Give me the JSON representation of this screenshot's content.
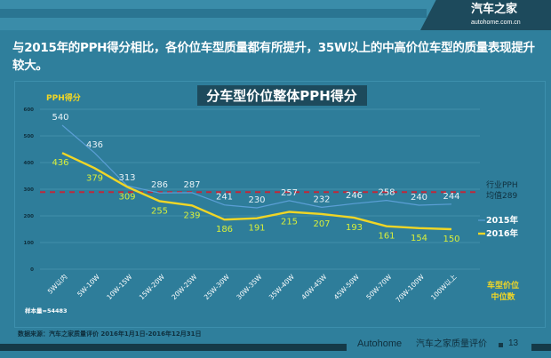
{
  "header": {
    "logo_cn": "汽车之家",
    "logo_en": "autohome.com.cn"
  },
  "headline": "与2015年的PPH得分相比，各价位车型质量都有所提升，35W以上的中高价位车型的质量表现提升较大。",
  "chart_data": {
    "type": "line",
    "title": "分车型价位整体PPH得分",
    "ylabel": "PPH得分",
    "xlabel": "车型价位中位数",
    "xlabel_lines": [
      "车型价位",
      "中位数"
    ],
    "ylim": [
      0,
      600
    ],
    "yticks": [
      0,
      100,
      200,
      300,
      400,
      500,
      600
    ],
    "grid": true,
    "legend_placement": "right",
    "categories": [
      "5W以内",
      "5W-10W",
      "10W-15W",
      "15W-20W",
      "20W-25W",
      "25W-30W",
      "30W-35W",
      "35W-40W",
      "40W-45W",
      "45W-50W",
      "50W-70W",
      "70W-100W",
      "100W以上"
    ],
    "series": [
      {
        "name": "2015年",
        "color": "#5b9fd6",
        "values": [
          540,
          436,
          313,
          286,
          287,
          241,
          230,
          257,
          232,
          246,
          258,
          240,
          244
        ]
      },
      {
        "name": "2016年",
        "color": "#f0d626",
        "values": [
          436,
          379,
          309,
          255,
          239,
          186,
          191,
          215,
          207,
          193,
          161,
          154,
          150
        ]
      }
    ],
    "reference_line": {
      "value": 289,
      "label_lines": [
        "行业PPH",
        "均值289"
      ],
      "color": "#c0283a"
    },
    "note": "样本量=54483"
  },
  "footer": {
    "source": "数据来源：汽车之家质量评价 2016年1月1日-2016年12月31日",
    "brand_en": "Autohome",
    "brand_cn": "汽车之家质量评价",
    "page": "13"
  }
}
